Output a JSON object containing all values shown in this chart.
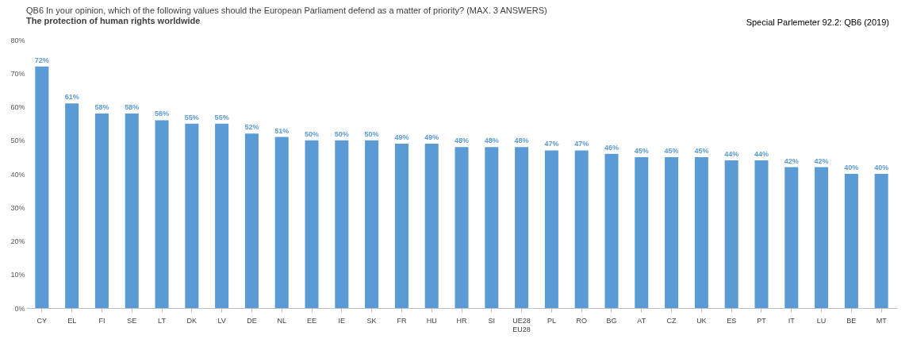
{
  "chart_data": {
    "type": "bar",
    "title": "QB6 In your opinion, which of the following values should the European Parliament defend as a matter of priority? (MAX. 3 ANSWERS)",
    "subtitle": "The protection of human rights worldwide",
    "annotations": [
      "Special Parlemeter 92.2: QB6 (2019)"
    ],
    "categories": [
      "CY",
      "EL",
      "FI",
      "SE",
      "LT",
      "DK",
      "LV",
      "DE",
      "NL",
      "EE",
      "IE",
      "SK",
      "FR",
      "HU",
      "HR",
      "SI",
      "UE28\nEU28",
      "PL",
      "RO",
      "BG",
      "AT",
      "CZ",
      "UK",
      "ES",
      "PT",
      "IT",
      "LU",
      "BE",
      "MT"
    ],
    "values": [
      72,
      61,
      58,
      58,
      56,
      55,
      55,
      52,
      51,
      50,
      50,
      50,
      49,
      49,
      48,
      48,
      48,
      47,
      47,
      46,
      45,
      45,
      45,
      44,
      44,
      42,
      42,
      40,
      40
    ],
    "value_labels": [
      "72%",
      "61%",
      "58%",
      "58%",
      "56%",
      "55%",
      "55%",
      "52%",
      "51%",
      "50%",
      "50%",
      "50%",
      "49%",
      "49%",
      "48%",
      "48%",
      "48%",
      "47%",
      "47%",
      "46%",
      "45%",
      "45%",
      "45%",
      "44%",
      "44%",
      "42%",
      "42%",
      "40%",
      "40%"
    ],
    "color": "#5b9bd5",
    "ylim": [
      0,
      80
    ],
    "yticks": [
      {
        "value": 0,
        "label": "0%"
      },
      {
        "value": 10,
        "label": "10%"
      },
      {
        "value": 20,
        "label": "20%"
      },
      {
        "value": 30,
        "label": "30%"
      },
      {
        "value": 40,
        "label": "40%"
      },
      {
        "value": 50,
        "label": "50%"
      },
      {
        "value": 60,
        "label": "60%"
      },
      {
        "value": 70,
        "label": "70%"
      },
      {
        "value": 80,
        "label": "80%"
      }
    ],
    "grid": false
  }
}
